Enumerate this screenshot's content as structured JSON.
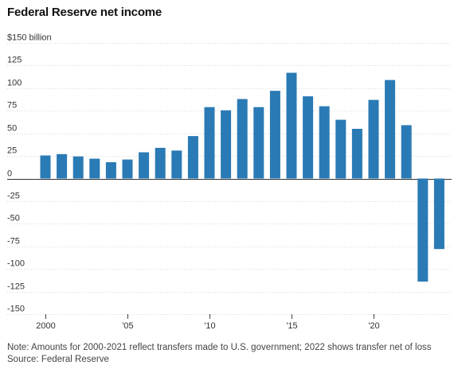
{
  "chart_data": {
    "type": "bar",
    "title": "Federal Reserve net income",
    "ylabel": "",
    "xlabel": "",
    "ylim": [
      -150,
      150
    ],
    "yticks": [
      150,
      125,
      100,
      75,
      50,
      25,
      0,
      -25,
      -50,
      -75,
      -100,
      -125,
      -150
    ],
    "ytick_labels": [
      "$150 billion",
      "125",
      "100",
      "75",
      "50",
      "25",
      "0",
      "-25",
      "-50",
      "-75",
      "-100",
      "-125",
      "-150"
    ],
    "categories": [
      2000,
      2001,
      2002,
      2003,
      2004,
      2005,
      2006,
      2007,
      2008,
      2009,
      2010,
      2011,
      2012,
      2013,
      2014,
      2015,
      2016,
      2017,
      2018,
      2019,
      2020,
      2021,
      2022,
      2023,
      2024
    ],
    "xticks": [
      2000,
      2005,
      2010,
      2015,
      2020
    ],
    "xtick_labels": [
      "2000",
      "'05",
      "'10",
      "'15",
      "'20"
    ],
    "values": [
      25.5,
      27,
      24.5,
      22,
      18,
      21,
      29,
      34,
      31,
      47,
      79,
      75.5,
      88,
      79,
      97,
      117,
      91,
      80,
      65,
      55,
      87,
      109,
      59,
      -114,
      -78
    ],
    "bar_color": "#2a7ab5",
    "grid": true
  },
  "notes": {
    "note": "Note: Amounts for 2000-2021 reflect transfers made to U.S. government; 2022 shows transfer net of loss",
    "source": "Source: Federal Reserve"
  }
}
